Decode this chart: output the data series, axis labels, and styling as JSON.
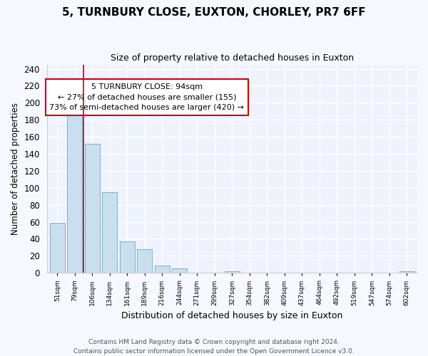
{
  "title": "5, TURNBURY CLOSE, EUXTON, CHORLEY, PR7 6FF",
  "subtitle": "Size of property relative to detached houses in Euxton",
  "xlabel": "Distribution of detached houses by size in Euxton",
  "ylabel": "Number of detached properties",
  "bar_labels": [
    "51sqm",
    "79sqm",
    "106sqm",
    "134sqm",
    "161sqm",
    "189sqm",
    "216sqm",
    "244sqm",
    "271sqm",
    "299sqm",
    "327sqm",
    "354sqm",
    "382sqm",
    "409sqm",
    "437sqm",
    "464sqm",
    "492sqm",
    "519sqm",
    "547sqm",
    "574sqm",
    "602sqm"
  ],
  "bar_values": [
    59,
    186,
    152,
    95,
    37,
    28,
    9,
    5,
    0,
    0,
    2,
    0,
    0,
    0,
    0,
    0,
    0,
    0,
    0,
    0,
    2
  ],
  "bar_color": "#c9dff0",
  "bar_edge_color": "#7ab0cc",
  "vline_x_idx": 1.5,
  "property_line_label": "5 TURNBURY CLOSE: 94sqm",
  "annotation_line1": "← 27% of detached houses are smaller (155)",
  "annotation_line2": "73% of semi-detached houses are larger (420) →",
  "annotation_box_color": "white",
  "annotation_box_edge_color": "#cc0000",
  "vline_color": "#cc0000",
  "ylim": [
    0,
    245
  ],
  "yticks": [
    0,
    20,
    40,
    60,
    80,
    100,
    120,
    140,
    160,
    180,
    200,
    220,
    240
  ],
  "footer1": "Contains HM Land Registry data © Crown copyright and database right 2024.",
  "footer2": "Contains public sector information licensed under the Open Government Licence v3.0.",
  "fig_facecolor": "#f5f8ff",
  "plot_facecolor": "#eef2fa",
  "grid_color": "#ffffff",
  "spine_color": "#cccccc"
}
